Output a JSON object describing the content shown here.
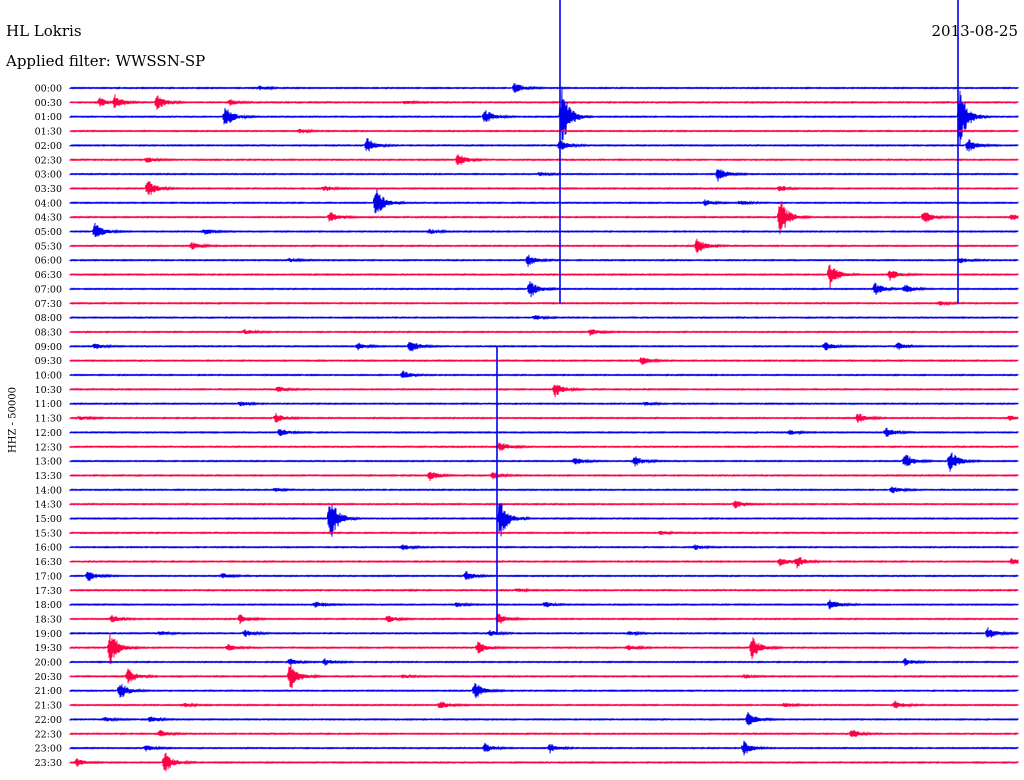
{
  "header": {
    "station": "HL Lokris",
    "date": "2013-08-25",
    "filter": "Applied filter: WWSSN-SP"
  },
  "colors": {
    "blue": "#0000ee",
    "red": "#ff0044"
  },
  "chart_data": {
    "type": "line",
    "title": "HL Lokris",
    "ylabel": "HHZ - 50000",
    "rows": [
      "00:00",
      "00:30",
      "01:00",
      "01:30",
      "02:00",
      "02:30",
      "03:00",
      "03:30",
      "04:00",
      "04:30",
      "05:00",
      "05:30",
      "06:00",
      "06:30",
      "07:00",
      "07:30",
      "08:00",
      "08:30",
      "09:00",
      "09:30",
      "10:00",
      "10:30",
      "11:00",
      "11:30",
      "12:00",
      "12:30",
      "13:00",
      "13:30",
      "14:00",
      "14:30",
      "15:00",
      "15:30",
      "16:00",
      "16:30",
      "17:00",
      "17:30",
      "18:00",
      "18:30",
      "19:00",
      "19:30",
      "20:00",
      "20:30",
      "21:00",
      "21:30",
      "22:00",
      "22:30",
      "23:00",
      "23:30"
    ],
    "trace_colors": [
      "blue",
      "red"
    ],
    "events": [
      {
        "row": 0,
        "x": 515,
        "amp": 1.0
      },
      {
        "row": 0,
        "x": 260,
        "amp": 0.3
      },
      {
        "row": 1,
        "x": 100,
        "amp": 0.8
      },
      {
        "row": 1,
        "x": 115,
        "amp": 1.2
      },
      {
        "row": 1,
        "x": 157,
        "amp": 1.3
      },
      {
        "row": 1,
        "x": 230,
        "amp": 0.5
      },
      {
        "row": 1,
        "x": 405,
        "amp": 0.3
      },
      {
        "row": 2,
        "x": 225,
        "amp": 2.0
      },
      {
        "row": 2,
        "x": 485,
        "amp": 1.3
      },
      {
        "row": 2,
        "x": 562,
        "amp": 5.5
      },
      {
        "row": 2,
        "x": 960,
        "amp": 5.0
      },
      {
        "row": 3,
        "x": 300,
        "amp": 0.3
      },
      {
        "row": 4,
        "x": 367,
        "amp": 1.3
      },
      {
        "row": 4,
        "x": 560,
        "amp": 1.0
      },
      {
        "row": 4,
        "x": 968,
        "amp": 1.2
      },
      {
        "row": 5,
        "x": 147,
        "amp": 0.5
      },
      {
        "row": 5,
        "x": 458,
        "amp": 1.2
      },
      {
        "row": 6,
        "x": 540,
        "amp": 0.3
      },
      {
        "row": 6,
        "x": 718,
        "amp": 1.2
      },
      {
        "row": 7,
        "x": 148,
        "amp": 1.5
      },
      {
        "row": 7,
        "x": 324,
        "amp": 0.5
      },
      {
        "row": 7,
        "x": 780,
        "amp": 0.6
      },
      {
        "row": 8,
        "x": 376,
        "amp": 2.5
      },
      {
        "row": 8,
        "x": 705,
        "amp": 0.5
      },
      {
        "row": 8,
        "x": 740,
        "amp": 0.4
      },
      {
        "row": 9,
        "x": 330,
        "amp": 1.0
      },
      {
        "row": 9,
        "x": 780,
        "amp": 3.5
      },
      {
        "row": 9,
        "x": 924,
        "amp": 1.2
      },
      {
        "row": 9,
        "x": 1012,
        "amp": 0.6
      },
      {
        "row": 10,
        "x": 95,
        "amp": 1.4
      },
      {
        "row": 10,
        "x": 205,
        "amp": 0.5
      },
      {
        "row": 10,
        "x": 430,
        "amp": 0.4
      },
      {
        "row": 11,
        "x": 192,
        "amp": 0.6
      },
      {
        "row": 11,
        "x": 697,
        "amp": 1.5
      },
      {
        "row": 12,
        "x": 528,
        "amp": 1.0
      },
      {
        "row": 12,
        "x": 290,
        "amp": 0.3
      },
      {
        "row": 12,
        "x": 960,
        "amp": 0.5
      },
      {
        "row": 13,
        "x": 830,
        "amp": 2.2
      },
      {
        "row": 13,
        "x": 890,
        "amp": 1.0
      },
      {
        "row": 14,
        "x": 530,
        "amp": 1.6
      },
      {
        "row": 14,
        "x": 875,
        "amp": 1.1
      },
      {
        "row": 14,
        "x": 905,
        "amp": 0.8
      },
      {
        "row": 15,
        "x": 940,
        "amp": 0.3
      },
      {
        "row": 16,
        "x": 535,
        "amp": 0.5
      },
      {
        "row": 17,
        "x": 245,
        "amp": 0.4
      },
      {
        "row": 17,
        "x": 590,
        "amp": 0.6
      },
      {
        "row": 18,
        "x": 95,
        "amp": 0.5
      },
      {
        "row": 18,
        "x": 358,
        "amp": 0.6
      },
      {
        "row": 18,
        "x": 410,
        "amp": 1.1
      },
      {
        "row": 18,
        "x": 825,
        "amp": 0.8
      },
      {
        "row": 18,
        "x": 898,
        "amp": 0.6
      },
      {
        "row": 19,
        "x": 642,
        "amp": 0.7
      },
      {
        "row": 20,
        "x": 403,
        "amp": 0.7
      },
      {
        "row": 21,
        "x": 278,
        "amp": 0.5
      },
      {
        "row": 21,
        "x": 555,
        "amp": 1.3
      },
      {
        "row": 22,
        "x": 240,
        "amp": 0.4
      },
      {
        "row": 22,
        "x": 645,
        "amp": 0.3
      },
      {
        "row": 23,
        "x": 80,
        "amp": 0.4
      },
      {
        "row": 23,
        "x": 276,
        "amp": 0.8
      },
      {
        "row": 23,
        "x": 858,
        "amp": 0.9
      },
      {
        "row": 23,
        "x": 1010,
        "amp": 0.4
      },
      {
        "row": 24,
        "x": 280,
        "amp": 0.8
      },
      {
        "row": 24,
        "x": 790,
        "amp": 0.4
      },
      {
        "row": 24,
        "x": 886,
        "amp": 0.8
      },
      {
        "row": 25,
        "x": 500,
        "amp": 1.0
      },
      {
        "row": 26,
        "x": 575,
        "amp": 0.6
      },
      {
        "row": 26,
        "x": 635,
        "amp": 0.9
      },
      {
        "row": 26,
        "x": 905,
        "amp": 1.4
      },
      {
        "row": 26,
        "x": 950,
        "amp": 2.0
      },
      {
        "row": 27,
        "x": 430,
        "amp": 0.9
      },
      {
        "row": 27,
        "x": 493,
        "amp": 0.6
      },
      {
        "row": 28,
        "x": 275,
        "amp": 0.3
      },
      {
        "row": 28,
        "x": 892,
        "amp": 0.6
      },
      {
        "row": 29,
        "x": 735,
        "amp": 0.7
      },
      {
        "row": 30,
        "x": 330,
        "amp": 4.0
      },
      {
        "row": 30,
        "x": 500,
        "amp": 3.5
      },
      {
        "row": 31,
        "x": 660,
        "amp": 0.3
      },
      {
        "row": 32,
        "x": 403,
        "amp": 0.5
      },
      {
        "row": 32,
        "x": 695,
        "amp": 0.4
      },
      {
        "row": 33,
        "x": 780,
        "amp": 0.7
      },
      {
        "row": 33,
        "x": 797,
        "amp": 1.0
      },
      {
        "row": 33,
        "x": 1012,
        "amp": 0.6
      },
      {
        "row": 34,
        "x": 88,
        "amp": 1.0
      },
      {
        "row": 34,
        "x": 223,
        "amp": 0.4
      },
      {
        "row": 34,
        "x": 466,
        "amp": 0.8
      },
      {
        "row": 35,
        "x": 517,
        "amp": 0.3
      },
      {
        "row": 36,
        "x": 315,
        "amp": 0.6
      },
      {
        "row": 36,
        "x": 457,
        "amp": 0.4
      },
      {
        "row": 36,
        "x": 545,
        "amp": 0.5
      },
      {
        "row": 36,
        "x": 830,
        "amp": 0.9
      },
      {
        "row": 37,
        "x": 112,
        "amp": 0.6
      },
      {
        "row": 37,
        "x": 240,
        "amp": 0.8
      },
      {
        "row": 37,
        "x": 388,
        "amp": 0.6
      },
      {
        "row": 37,
        "x": 498,
        "amp": 1.0
      },
      {
        "row": 38,
        "x": 160,
        "amp": 0.4
      },
      {
        "row": 38,
        "x": 245,
        "amp": 0.6
      },
      {
        "row": 38,
        "x": 490,
        "amp": 0.5
      },
      {
        "row": 38,
        "x": 630,
        "amp": 0.3
      },
      {
        "row": 38,
        "x": 988,
        "amp": 1.0
      },
      {
        "row": 39,
        "x": 110,
        "amp": 3.0
      },
      {
        "row": 39,
        "x": 228,
        "amp": 0.6
      },
      {
        "row": 39,
        "x": 478,
        "amp": 1.2
      },
      {
        "row": 39,
        "x": 628,
        "amp": 0.5
      },
      {
        "row": 39,
        "x": 752,
        "amp": 2.0
      },
      {
        "row": 40,
        "x": 290,
        "amp": 0.6
      },
      {
        "row": 40,
        "x": 325,
        "amp": 0.6
      },
      {
        "row": 40,
        "x": 905,
        "amp": 0.6
      },
      {
        "row": 41,
        "x": 128,
        "amp": 1.5
      },
      {
        "row": 41,
        "x": 290,
        "amp": 2.5
      },
      {
        "row": 41,
        "x": 403,
        "amp": 0.3
      },
      {
        "row": 41,
        "x": 745,
        "amp": 0.3
      },
      {
        "row": 42,
        "x": 120,
        "amp": 1.5
      },
      {
        "row": 42,
        "x": 475,
        "amp": 1.5
      },
      {
        "row": 43,
        "x": 185,
        "amp": 0.3
      },
      {
        "row": 43,
        "x": 440,
        "amp": 0.7
      },
      {
        "row": 43,
        "x": 785,
        "amp": 0.4
      },
      {
        "row": 43,
        "x": 895,
        "amp": 0.7
      },
      {
        "row": 44,
        "x": 105,
        "amp": 0.4
      },
      {
        "row": 44,
        "x": 150,
        "amp": 0.5
      },
      {
        "row": 44,
        "x": 748,
        "amp": 1.2
      },
      {
        "row": 45,
        "x": 160,
        "amp": 0.6
      },
      {
        "row": 45,
        "x": 852,
        "amp": 0.8
      },
      {
        "row": 46,
        "x": 146,
        "amp": 0.5
      },
      {
        "row": 46,
        "x": 485,
        "amp": 0.8
      },
      {
        "row": 46,
        "x": 550,
        "amp": 0.8
      },
      {
        "row": 46,
        "x": 744,
        "amp": 1.2
      },
      {
        "row": 47,
        "x": 77,
        "amp": 0.7
      },
      {
        "row": 47,
        "x": 165,
        "amp": 1.8
      }
    ],
    "long_spikes": [
      {
        "x": 560,
        "from_row": 0,
        "to_row": 15,
        "anchor_row": 2
      },
      {
        "x": 958,
        "from_row": 0,
        "to_row": 15,
        "anchor_row": 2
      },
      {
        "x": 497,
        "from_row": 18,
        "to_row": 38,
        "anchor_row": 30
      }
    ]
  }
}
